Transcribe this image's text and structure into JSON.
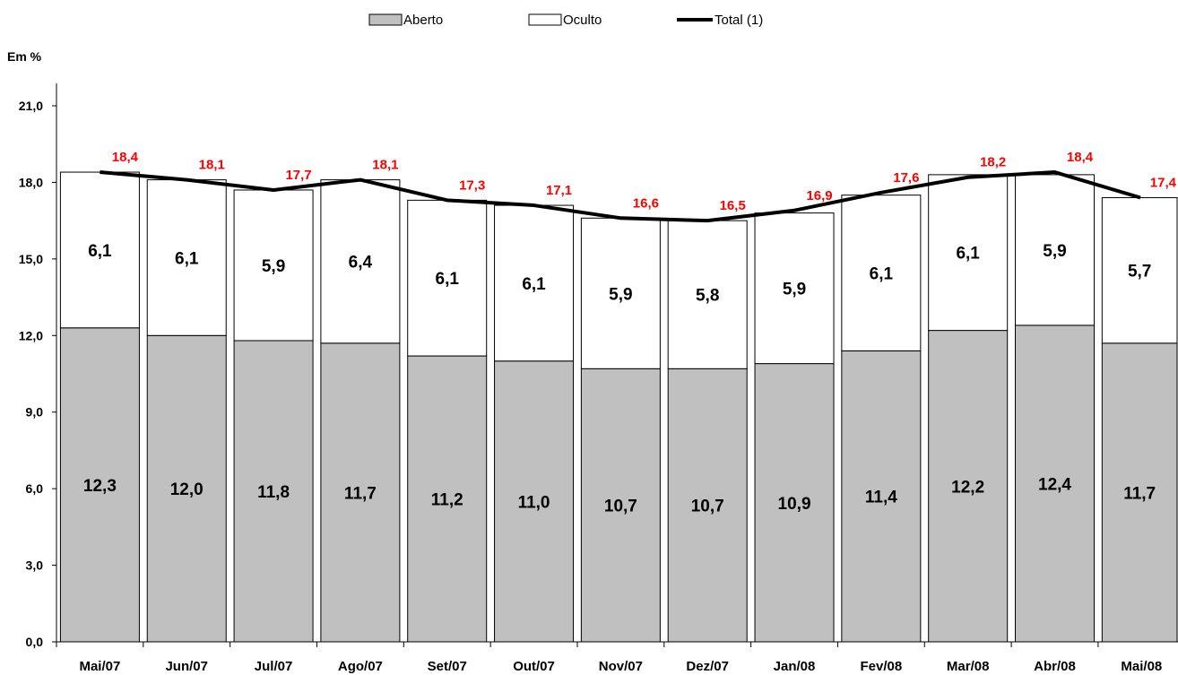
{
  "chart_data": {
    "type": "bar",
    "stacked": true,
    "ylabel": "Em %",
    "ylim": [
      0,
      21
    ],
    "ytick_step": 3,
    "yticks": [
      "0,0",
      "3,0",
      "6,0",
      "9,0",
      "12,0",
      "15,0",
      "18,0",
      "21,0"
    ],
    "categories": [
      "Mai/07",
      "Jun/07",
      "Jul/07",
      "Ago/07",
      "Set/07",
      "Out/07",
      "Nov/07",
      "Dez/07",
      "Jan/08",
      "Fev/08",
      "Mar/08",
      "Abr/08",
      "Mai/08"
    ],
    "series": [
      {
        "name": "Aberto",
        "kind": "bar",
        "color": "#c0c0c0",
        "values": [
          12.3,
          12.0,
          11.8,
          11.7,
          11.2,
          11.0,
          10.7,
          10.7,
          10.9,
          11.4,
          12.2,
          12.4,
          11.7
        ],
        "labels": [
          "12,3",
          "12,0",
          "11,8",
          "11,7",
          "11,2",
          "11,0",
          "10,7",
          "10,7",
          "10,9",
          "11,4",
          "12,2",
          "12,4",
          "11,7"
        ]
      },
      {
        "name": "Oculto",
        "kind": "bar",
        "color": "#ffffff",
        "values": [
          6.1,
          6.1,
          5.9,
          6.4,
          6.1,
          6.1,
          5.9,
          5.8,
          5.9,
          6.1,
          6.1,
          5.9,
          5.7
        ],
        "labels": [
          "6,1",
          "6,1",
          "5,9",
          "6,4",
          "6,1",
          "6,1",
          "5,9",
          "5,8",
          "5,9",
          "6,1",
          "6,1",
          "5,9",
          "5,7"
        ]
      },
      {
        "name": "Total (1)",
        "kind": "line",
        "color": "#000000",
        "label_color": "#ff0000",
        "values": [
          18.4,
          18.1,
          17.7,
          18.1,
          17.3,
          17.1,
          16.6,
          16.5,
          16.9,
          17.6,
          18.2,
          18.4,
          17.4
        ],
        "labels": [
          "18,4",
          "18,1",
          "17,7",
          "18,1",
          "17,3",
          "17,1",
          "16,6",
          "16,5",
          "16,9",
          "17,6",
          "18,2",
          "18,4",
          "17,4"
        ]
      }
    ],
    "legend_position": "top-center",
    "grid": false
  }
}
